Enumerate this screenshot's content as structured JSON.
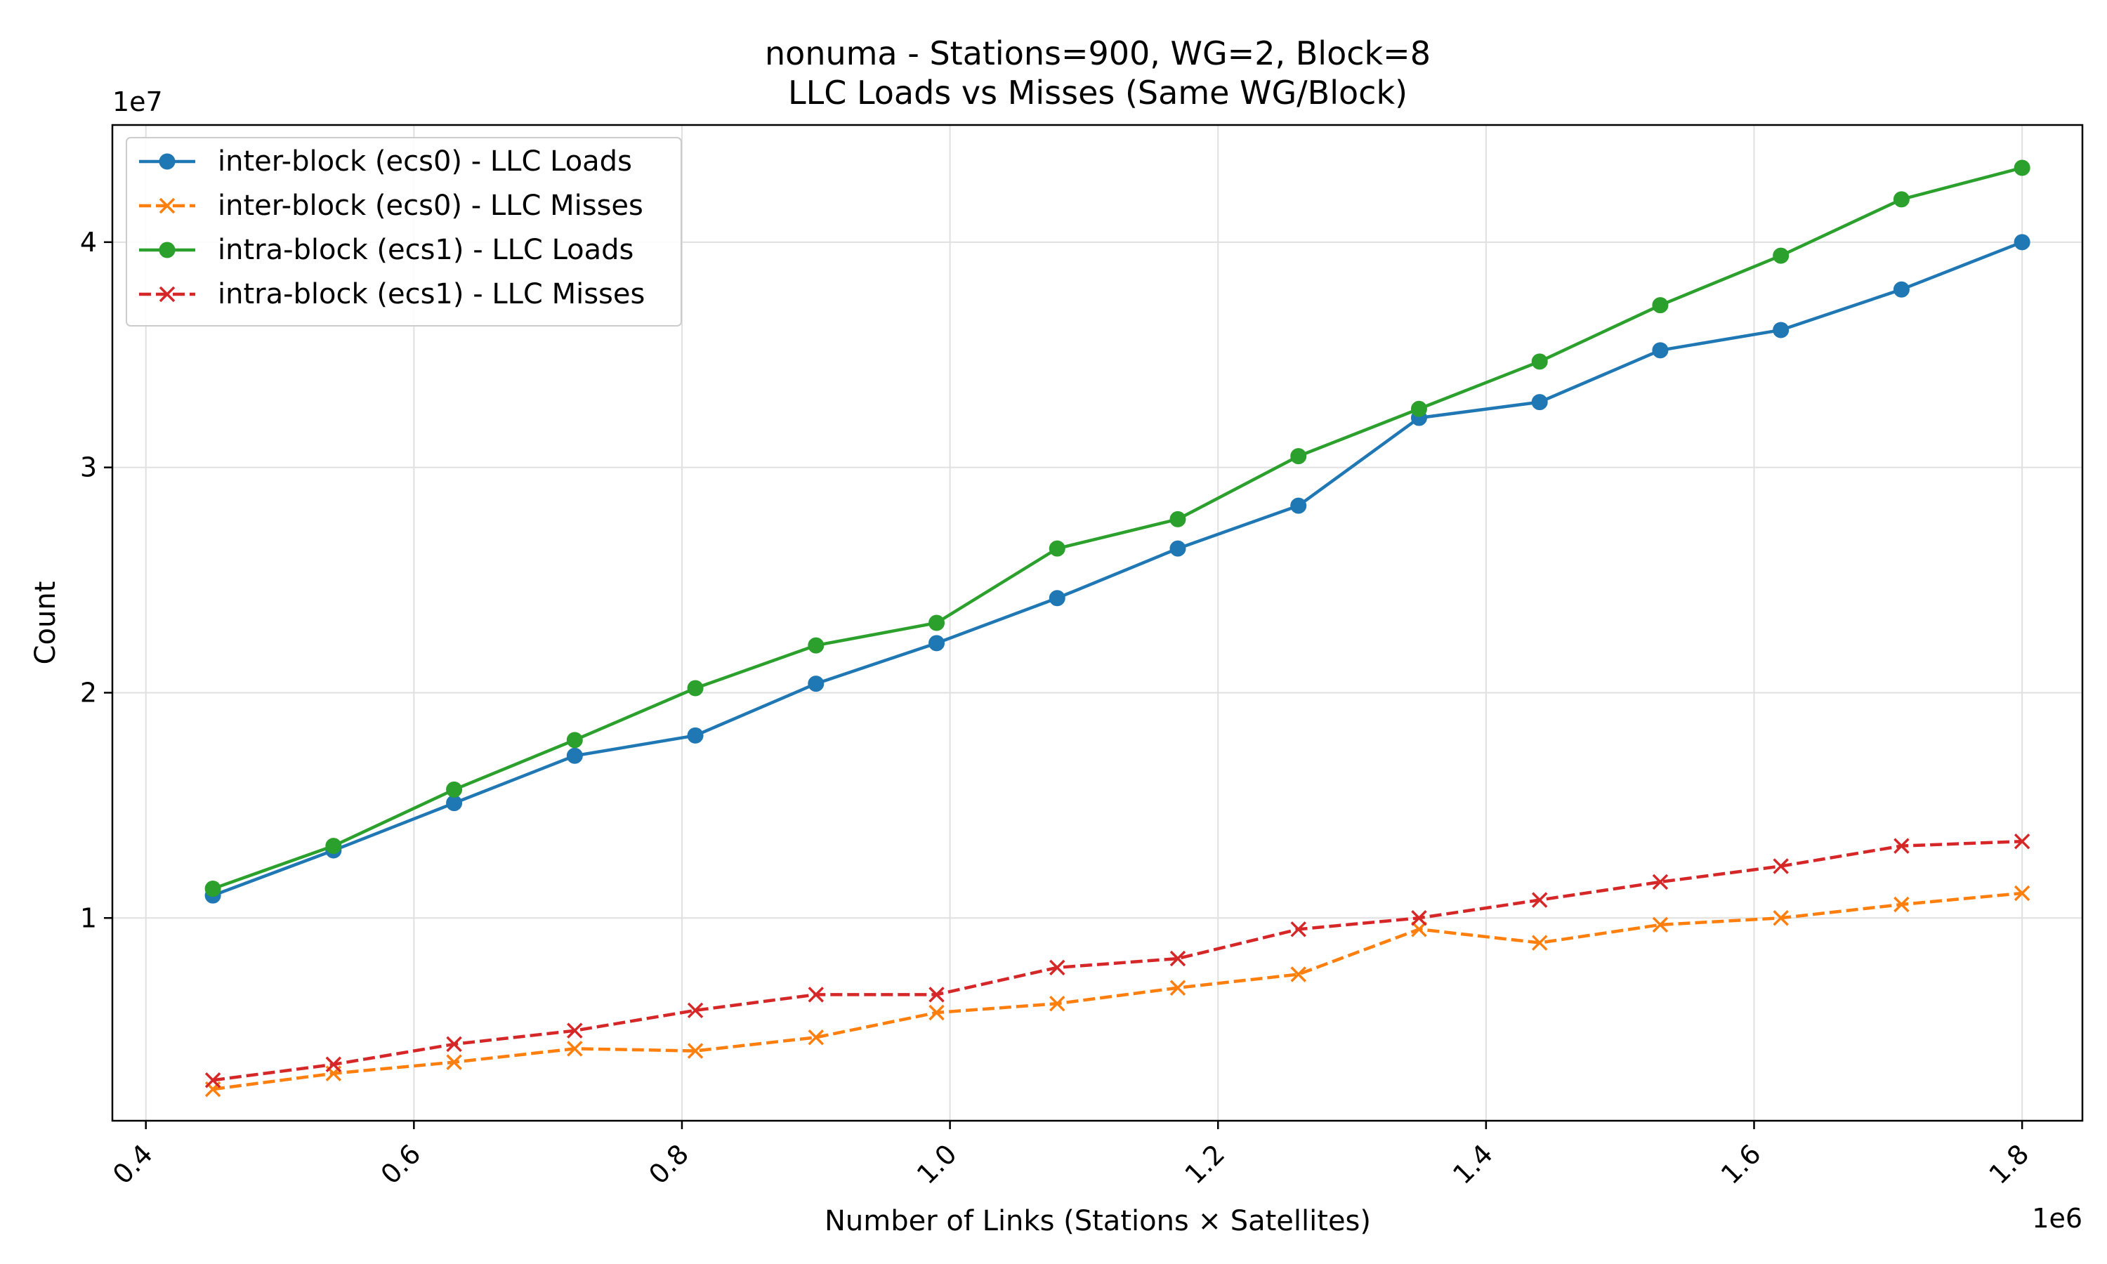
{
  "chart_data": {
    "type": "line",
    "title": "nonuma - Stations=900, WG=2, Block=8",
    "subtitle": "LLC Loads vs Misses (Same WG/Block)",
    "xlabel": "Number of Links (Stations × Satellites)",
    "ylabel": "Count",
    "x_multiplier_label": "1e6",
    "y_multiplier_label": "1e7",
    "xlim": [
      0.375,
      1.845
    ],
    "ylim": [
      0.1,
      4.52
    ],
    "xticks": [
      0.4,
      0.6,
      0.8,
      1.0,
      1.2,
      1.4,
      1.6,
      1.8
    ],
    "xtick_labels": [
      "0.4",
      "0.6",
      "0.8",
      "1.0",
      "1.2",
      "1.4",
      "1.6",
      "1.8"
    ],
    "yticks": [
      1,
      2,
      3,
      4
    ],
    "ytick_labels": [
      "1",
      "2",
      "3",
      "4"
    ],
    "grid": true,
    "legend_position": "top-left",
    "x": [
      0.45,
      0.54,
      0.63,
      0.72,
      0.81,
      0.9,
      0.99,
      1.08,
      1.17,
      1.26,
      1.35,
      1.44,
      1.53,
      1.62,
      1.71,
      1.8
    ],
    "series": [
      {
        "name": "inter-block (ecs0) - LLC Loads",
        "color": "#1f77b4",
        "style": "solid",
        "marker": "circle",
        "values": [
          1.1,
          1.3,
          1.51,
          1.72,
          1.81,
          2.04,
          2.22,
          2.42,
          2.64,
          2.83,
          3.22,
          3.29,
          3.52,
          3.61,
          3.79,
          4.0
        ]
      },
      {
        "name": "inter-block (ecs0) - LLC Misses",
        "color": "#ff7f0e",
        "style": "dashed",
        "marker": "x",
        "values": [
          0.24,
          0.31,
          0.36,
          0.42,
          0.41,
          0.47,
          0.58,
          0.62,
          0.69,
          0.75,
          0.95,
          0.89,
          0.97,
          1.0,
          1.06,
          1.11
        ]
      },
      {
        "name": "intra-block (ecs1) - LLC Loads",
        "color": "#2ca02c",
        "style": "solid",
        "marker": "circle",
        "values": [
          1.13,
          1.32,
          1.57,
          1.79,
          2.02,
          2.21,
          2.31,
          2.64,
          2.77,
          3.05,
          3.26,
          3.47,
          3.72,
          3.94,
          4.19,
          4.33
        ]
      },
      {
        "name": "intra-block (ecs1) - LLC Misses",
        "color": "#d62728",
        "style": "dashed",
        "marker": "x",
        "values": [
          0.28,
          0.35,
          0.44,
          0.5,
          0.59,
          0.66,
          0.66,
          0.78,
          0.82,
          0.95,
          1.0,
          1.08,
          1.16,
          1.23,
          1.32,
          1.34
        ]
      }
    ]
  }
}
